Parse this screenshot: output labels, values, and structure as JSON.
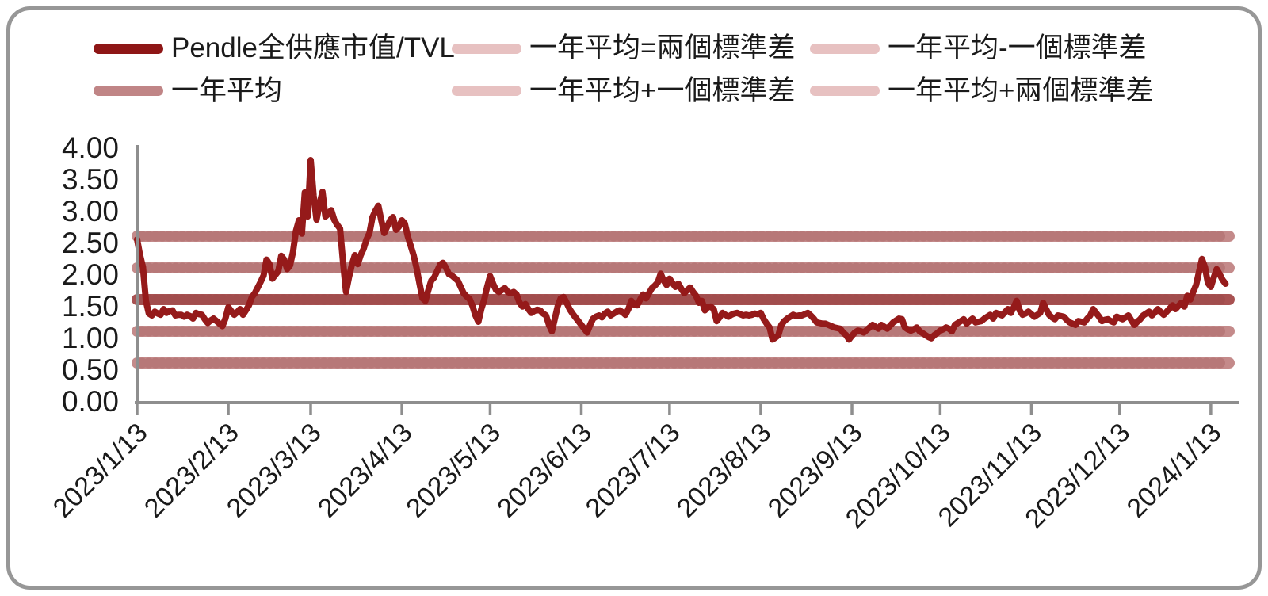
{
  "frame": {
    "border_color": "#979797",
    "background": "#ffffff"
  },
  "legend": {
    "items": [
      {
        "label": "Pendle全供應市值/TVL",
        "swatch_color": "#8e1616"
      },
      {
        "label": "一年平均=兩個標準差",
        "swatch_color": "#e7c1c1"
      },
      {
        "label": "一年平均-一個標準差",
        "swatch_color": "#e7c1c1"
      },
      {
        "label": "一年平均",
        "swatch_color": "#c08586"
      },
      {
        "label": "一年平均+一個標準差",
        "swatch_color": "#e7c1c1"
      },
      {
        "label": "一年平均+兩個標準差",
        "swatch_color": "#e7c1c1"
      }
    ]
  },
  "chart_data": {
    "type": "line",
    "title": "",
    "xlabel": "",
    "ylabel": "",
    "grid": false,
    "legend_position": "top",
    "x_axis": {
      "start_date": "2023/1/13",
      "tick_labels": [
        "2023/1/13",
        "2023/2/13",
        "2023/3/13",
        "2023/4/13",
        "2023/5/13",
        "2023/6/13",
        "2023/7/13",
        "2023/8/13",
        "2023/9/13",
        "2023/10/13",
        "2023/11/13",
        "2023/12/13",
        "2024/1/13"
      ],
      "tick_days": [
        0,
        31,
        59,
        90,
        120,
        151,
        181,
        212,
        243,
        273,
        304,
        334,
        365
      ]
    },
    "y_axis": {
      "min": 0,
      "max": 4,
      "step": 0.5,
      "tick_labels": [
        "0.00",
        "0.50",
        "1.00",
        "1.50",
        "2.00",
        "2.50",
        "3.00",
        "3.50",
        "4.00"
      ]
    },
    "stat_lines": [
      {
        "name": "一年平均-兩個標準差",
        "value": 0.6,
        "color": "#c48a8a"
      },
      {
        "name": "一年平均-一個標準差",
        "value": 1.1,
        "color": "#c48a8a"
      },
      {
        "name": "一年平均+一個標準差",
        "value": 2.1,
        "color": "#c48a8a"
      },
      {
        "name": "一年平均+兩個標準差",
        "value": 2.6,
        "color": "#c48a8a"
      },
      {
        "name": "一年平均",
        "value": 1.6,
        "color": "#a85252"
      }
    ],
    "series": [
      {
        "name": "Pendle全供應市值/TVL",
        "color": "#951a1a",
        "interval_days": 1,
        "values": [
          2.55,
          2.3,
          2.11,
          1.58,
          1.38,
          1.35,
          1.41,
          1.38,
          1.36,
          1.45,
          1.39,
          1.42,
          1.43,
          1.35,
          1.36,
          1.36,
          1.33,
          1.36,
          1.34,
          1.3,
          1.39,
          1.37,
          1.36,
          1.29,
          1.23,
          1.27,
          1.3,
          1.26,
          1.22,
          1.18,
          1.3,
          1.48,
          1.42,
          1.36,
          1.4,
          1.45,
          1.36,
          1.43,
          1.51,
          1.64,
          1.7,
          1.79,
          1.88,
          1.98,
          2.23,
          2.16,
          1.93,
          1.99,
          2.05,
          2.29,
          2.23,
          2.08,
          2.14,
          2.35,
          2.68,
          2.85,
          2.64,
          3.29,
          2.91,
          3.8,
          3.24,
          2.86,
          3.1,
          3.3,
          2.91,
          2.95,
          3.01,
          2.86,
          2.78,
          2.72,
          2.2,
          1.72,
          1.95,
          2.15,
          2.3,
          2.16,
          2.3,
          2.4,
          2.55,
          2.65,
          2.9,
          3.0,
          3.08,
          2.85,
          2.65,
          2.75,
          2.85,
          2.9,
          2.7,
          2.75,
          2.85,
          2.8,
          2.6,
          2.45,
          2.3,
          2.1,
          1.85,
          1.62,
          1.58,
          1.75,
          1.9,
          1.95,
          2.05,
          2.15,
          2.18,
          2.1,
          2.0,
          1.98,
          1.94,
          1.9,
          1.8,
          1.7,
          1.65,
          1.61,
          1.5,
          1.35,
          1.25,
          1.45,
          1.6,
          1.8,
          1.97,
          1.85,
          1.75,
          1.72,
          1.75,
          1.78,
          1.72,
          1.7,
          1.72,
          1.68,
          1.55,
          1.49,
          1.53,
          1.45,
          1.39,
          1.42,
          1.44,
          1.43,
          1.38,
          1.35,
          1.2,
          1.1,
          1.3,
          1.5,
          1.62,
          1.64,
          1.55,
          1.45,
          1.38,
          1.32,
          1.26,
          1.2,
          1.14,
          1.08,
          1.2,
          1.3,
          1.33,
          1.35,
          1.32,
          1.38,
          1.41,
          1.35,
          1.38,
          1.41,
          1.43,
          1.4,
          1.36,
          1.45,
          1.58,
          1.52,
          1.51,
          1.6,
          1.68,
          1.62,
          1.7,
          1.78,
          1.82,
          1.87,
          2.01,
          1.9,
          1.83,
          1.93,
          1.86,
          1.8,
          1.85,
          1.77,
          1.7,
          1.75,
          1.79,
          1.72,
          1.66,
          1.55,
          1.58,
          1.43,
          1.48,
          1.49,
          1.45,
          1.26,
          1.32,
          1.39,
          1.36,
          1.33,
          1.36,
          1.38,
          1.39,
          1.37,
          1.35,
          1.36,
          1.35,
          1.36,
          1.38,
          1.37,
          1.39,
          1.29,
          1.22,
          1.16,
          0.97,
          1.0,
          1.04,
          1.2,
          1.26,
          1.3,
          1.33,
          1.36,
          1.34,
          1.35,
          1.35,
          1.37,
          1.39,
          1.35,
          1.3,
          1.24,
          1.23,
          1.22,
          1.22,
          1.2,
          1.18,
          1.16,
          1.15,
          1.14,
          1.08,
          1.04,
          0.97,
          1.03,
          1.08,
          1.11,
          1.1,
          1.08,
          1.12,
          1.16,
          1.2,
          1.17,
          1.14,
          1.2,
          1.17,
          1.14,
          1.19,
          1.24,
          1.27,
          1.3,
          1.29,
          1.16,
          1.13,
          1.11,
          1.13,
          1.16,
          1.1,
          1.07,
          1.04,
          1.01,
          0.99,
          1.04,
          1.07,
          1.11,
          1.13,
          1.16,
          1.14,
          1.1,
          1.2,
          1.23,
          1.26,
          1.29,
          1.22,
          1.26,
          1.3,
          1.24,
          1.25,
          1.26,
          1.3,
          1.33,
          1.36,
          1.3,
          1.39,
          1.37,
          1.35,
          1.4,
          1.45,
          1.39,
          1.48,
          1.58,
          1.43,
          1.36,
          1.38,
          1.41,
          1.37,
          1.33,
          1.36,
          1.39,
          1.55,
          1.45,
          1.36,
          1.32,
          1.29,
          1.35,
          1.34,
          1.33,
          1.28,
          1.24,
          1.22,
          1.2,
          1.26,
          1.25,
          1.24,
          1.3,
          1.35,
          1.45,
          1.39,
          1.33,
          1.26,
          1.28,
          1.29,
          1.26,
          1.24,
          1.33,
          1.31,
          1.29,
          1.32,
          1.35,
          1.27,
          1.2,
          1.25,
          1.29,
          1.35,
          1.38,
          1.41,
          1.35,
          1.4,
          1.45,
          1.4,
          1.36,
          1.41,
          1.46,
          1.51,
          1.45,
          1.5,
          1.55,
          1.49,
          1.66,
          1.6,
          1.72,
          1.83,
          2.04,
          2.24,
          2.11,
          1.86,
          1.8,
          1.95,
          2.08,
          2.0,
          1.91,
          1.85
        ]
      }
    ]
  }
}
